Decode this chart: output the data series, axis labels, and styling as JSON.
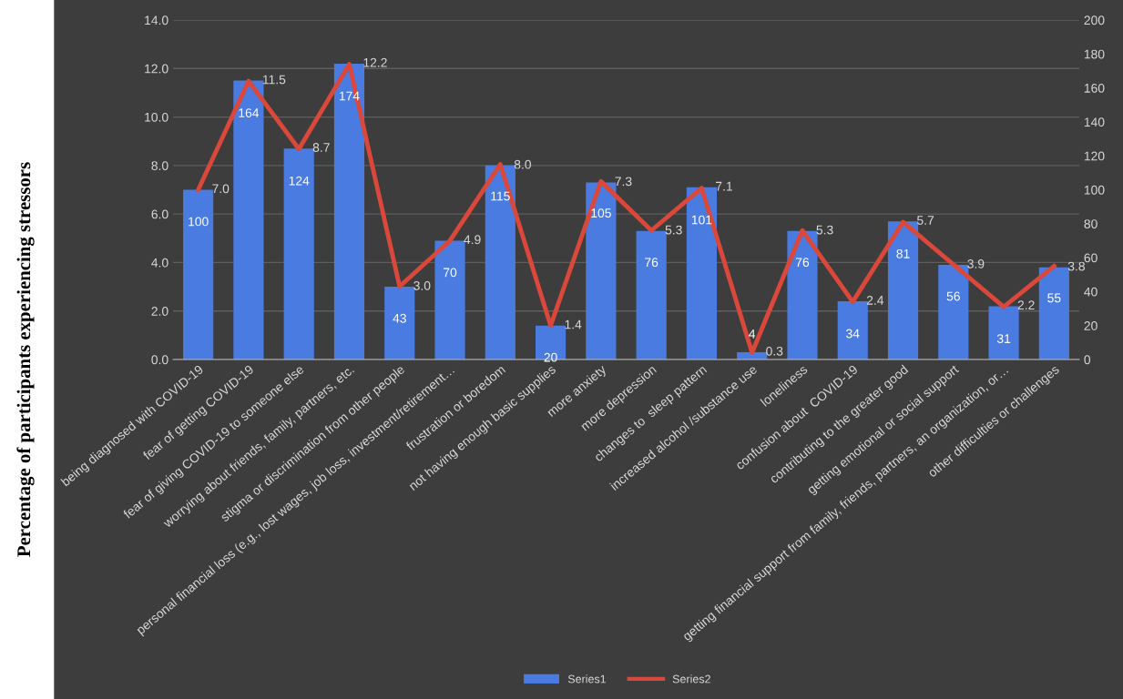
{
  "chart_data": {
    "type": "bar",
    "ylabel": "Percentage of participants experiencing stressors",
    "categories": [
      "being diagnosed with COVID-19",
      "fear of getting COVID-19",
      "fear of giving COVID-19 to someone else",
      "worrying about friends, family, partners, etc.",
      "stigma or discrimination from other people",
      "personal financial loss (e.g., lost wages, job loss, investment/retirement…",
      "frustration or boredom",
      "not having enough basic supplies",
      "more anxiety",
      "more depression",
      "changes to  sleep pattern",
      "increased alcohol /substance use",
      "loneliness",
      "confusion about  COVID-19",
      "contributing to the greater good",
      "getting emotional or social support",
      "getting financial support from family, friends, partners, an organization, or…",
      "other difficulties or challenges"
    ],
    "series": [
      {
        "name": "Series1",
        "type": "bar",
        "color": "#4a7be0",
        "values": [
          7.0,
          11.5,
          8.7,
          12.2,
          3.0,
          4.9,
          8.0,
          1.4,
          7.3,
          5.3,
          7.1,
          0.3,
          5.3,
          2.4,
          5.7,
          3.9,
          2.2,
          3.8
        ],
        "value_labels": [
          "7.0",
          "11.5",
          "8.7",
          "12.2",
          "3.0",
          "4.9",
          "8.0",
          "1.4",
          "7.3",
          "5.3",
          "7.1",
          "0.3",
          "5.3",
          "2.4",
          "5.7",
          "3.9",
          "2.2",
          "3.8"
        ]
      },
      {
        "name": "Series2",
        "type": "line",
        "axis": "y2",
        "color": "#d9483b",
        "values": [
          100,
          164,
          124,
          174,
          43,
          70,
          115,
          20,
          105,
          76,
          101,
          4,
          76,
          34,
          81,
          56,
          31,
          55
        ],
        "value_labels": [
          "100",
          "164",
          "124",
          "174",
          "43",
          "70",
          "115",
          "20",
          "105",
          "76",
          "101",
          "4",
          "76",
          "34",
          "81",
          "56",
          "31",
          "55"
        ]
      }
    ],
    "ylim": [
      0,
      14
    ],
    "yticks": [
      {
        "value": 0,
        "label": "0.0"
      },
      {
        "value": 2,
        "label": "2.0"
      },
      {
        "value": 4,
        "label": "4.0"
      },
      {
        "value": 6,
        "label": "6.0"
      },
      {
        "value": 8,
        "label": "8.0"
      },
      {
        "value": 10,
        "label": "10.0"
      },
      {
        "value": 12,
        "label": "12.0"
      },
      {
        "value": 14,
        "label": "14.0"
      }
    ],
    "y2lim": [
      0,
      200
    ],
    "y2ticks": [
      0,
      20,
      40,
      60,
      80,
      100,
      120,
      140,
      160,
      180,
      200
    ],
    "grid": "y",
    "legend": "bottom",
    "marker": "none",
    "line_style": "solid"
  }
}
